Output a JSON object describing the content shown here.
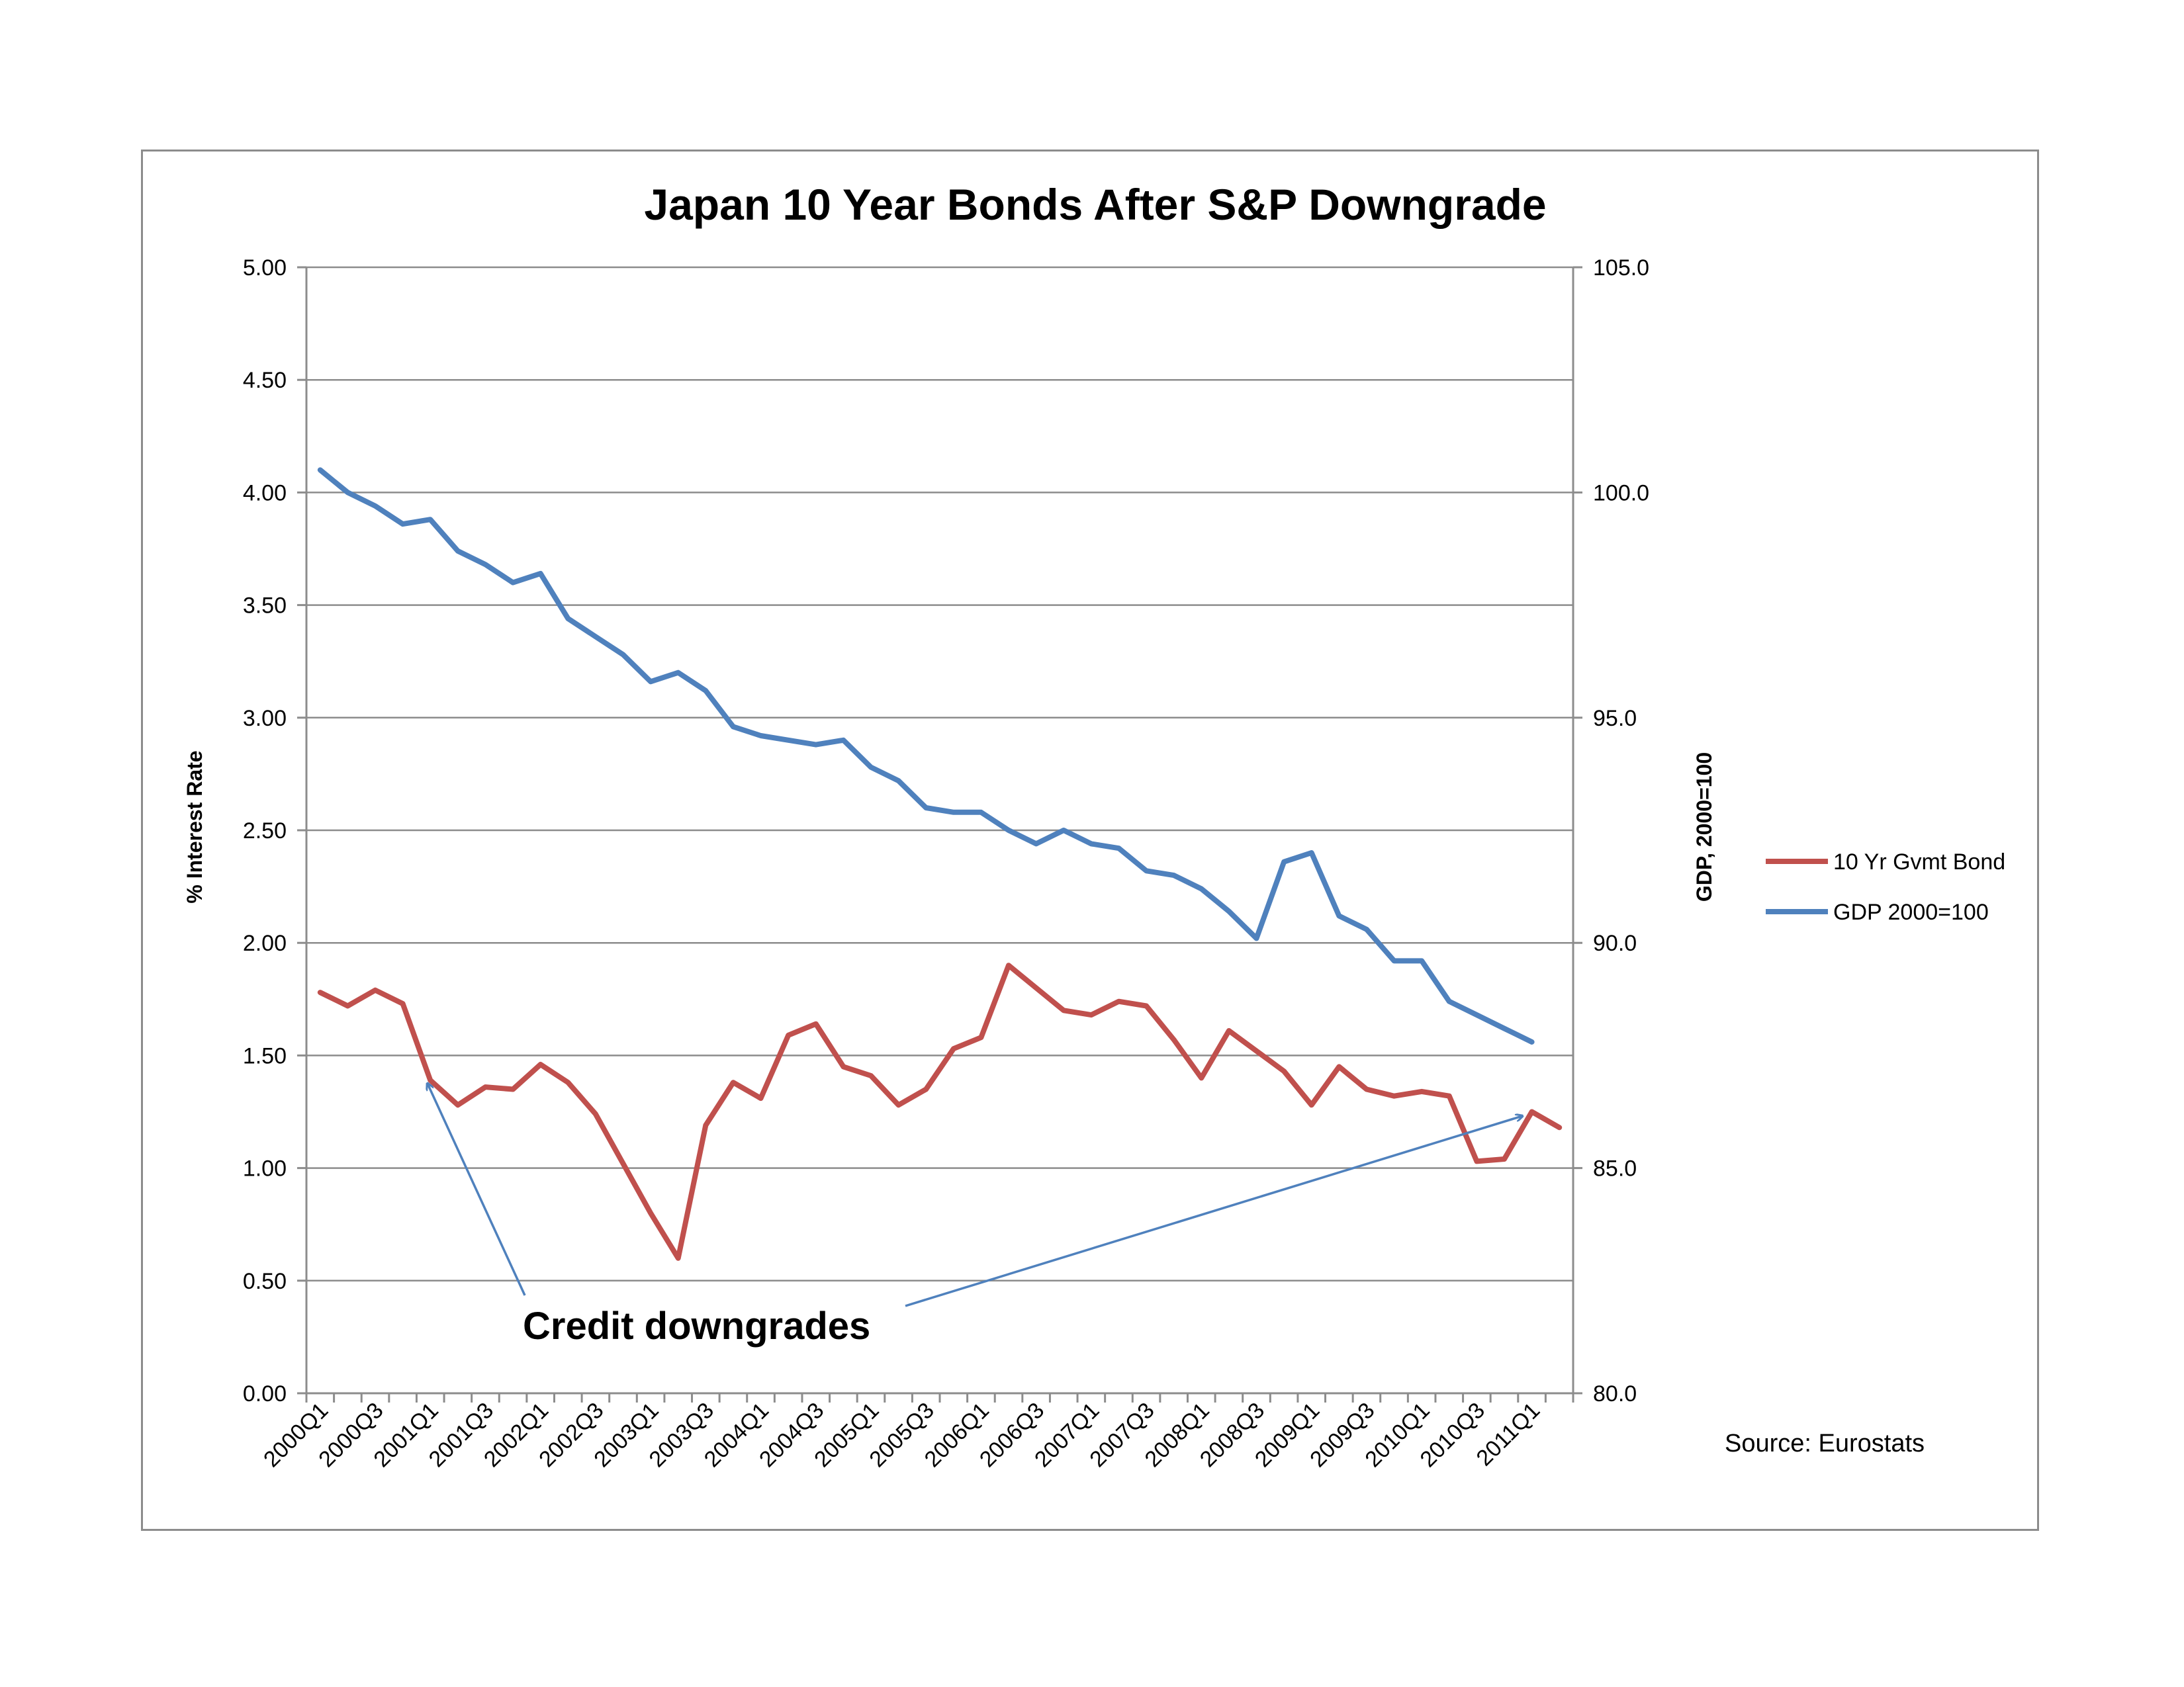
{
  "chart_data": {
    "type": "line",
    "title": "Japan 10 Year Bonds After S&P Downgrade",
    "ylabel": "% Interest Rate",
    "y2label": "GDP, 2000=100",
    "ylim": [
      0,
      5
    ],
    "y2lim": [
      80,
      105
    ],
    "yticks": [
      "0.00",
      "0.50",
      "1.00",
      "1.50",
      "2.00",
      "2.50",
      "3.00",
      "3.50",
      "4.00",
      "4.50",
      "5.00"
    ],
    "y2ticks": [
      "80.0",
      "85.0",
      "90.0",
      "95.0",
      "100.0",
      "105.0"
    ],
    "x": [
      "2000Q1",
      "2000Q2",
      "2000Q3",
      "2000Q4",
      "2001Q1",
      "2001Q2",
      "2001Q3",
      "2001Q4",
      "2002Q1",
      "2002Q2",
      "2002Q3",
      "2002Q4",
      "2003Q1",
      "2003Q2",
      "2003Q3",
      "2003Q4",
      "2004Q1",
      "2004Q2",
      "2004Q3",
      "2004Q4",
      "2005Q1",
      "2005Q2",
      "2005Q3",
      "2005Q4",
      "2006Q1",
      "2006Q2",
      "2006Q3",
      "2006Q4",
      "2007Q1",
      "2007Q2",
      "2007Q3",
      "2007Q4",
      "2008Q1",
      "2008Q2",
      "2008Q3",
      "2008Q4",
      "2009Q1",
      "2009Q2",
      "2009Q3",
      "2009Q4",
      "2010Q1",
      "2010Q2",
      "2010Q3",
      "2010Q4",
      "2011Q1",
      "2011Q2"
    ],
    "xtick_labels": [
      "2000Q1",
      "2000Q3",
      "2001Q1",
      "2001Q3",
      "2002Q1",
      "2002Q3",
      "2003Q1",
      "2003Q3",
      "2004Q1",
      "2004Q3",
      "2005Q1",
      "2005Q3",
      "2006Q1",
      "2006Q3",
      "2007Q1",
      "2007Q3",
      "2008Q1",
      "2008Q3",
      "2009Q1",
      "2009Q3",
      "2010Q1",
      "2010Q3",
      "2011Q1"
    ],
    "series": [
      {
        "name": "10 Yr Gvmt Bond",
        "axis": "left",
        "color": "#c0504d",
        "values": [
          1.78,
          1.72,
          1.79,
          1.73,
          1.39,
          1.28,
          1.36,
          1.35,
          1.46,
          1.38,
          1.24,
          1.02,
          0.8,
          0.6,
          1.19,
          1.38,
          1.31,
          1.59,
          1.64,
          1.45,
          1.41,
          1.28,
          1.35,
          1.53,
          1.58,
          1.9,
          1.8,
          1.7,
          1.68,
          1.74,
          1.72,
          1.57,
          1.4,
          1.61,
          1.52,
          1.43,
          1.28,
          1.45,
          1.35,
          1.32,
          1.34,
          1.32,
          1.03,
          1.04,
          1.25,
          1.18
        ]
      },
      {
        "name": "GDP 2000=100",
        "axis": "right",
        "color": "#4f81bd",
        "values": [
          100.5,
          100.0,
          99.7,
          99.3,
          99.4,
          98.7,
          98.4,
          98.0,
          98.2,
          97.2,
          96.8,
          96.4,
          95.8,
          96.0,
          95.6,
          94.8,
          94.6,
          94.5,
          94.4,
          94.5,
          93.9,
          93.6,
          93.0,
          92.9,
          92.9,
          92.5,
          92.2,
          92.5,
          92.2,
          92.1,
          91.6,
          91.5,
          91.2,
          90.7,
          90.1,
          91.8,
          92.0,
          90.6,
          90.3,
          89.6,
          89.6,
          88.7,
          88.4,
          88.1,
          87.8,
          null
        ]
      }
    ],
    "legend_position": "right",
    "grid": true,
    "annotation": "Credit downgrades",
    "source": "Source:  Eurostats"
  }
}
